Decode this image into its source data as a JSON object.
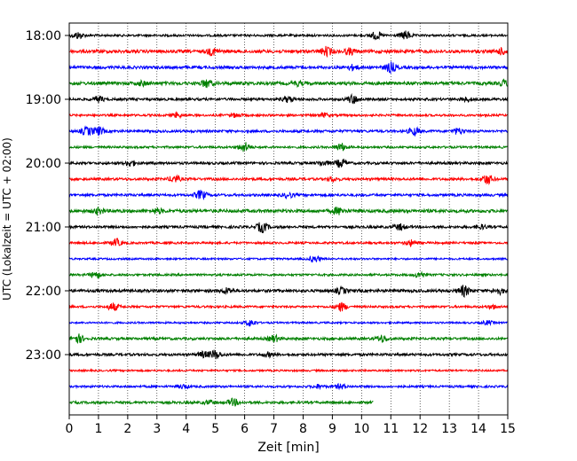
{
  "chart_data": {
    "type": "line",
    "title": "",
    "xlabel": "Zeit  [min]",
    "ylabel": "UTC (Lokalzeit = UTC + 02:00)",
    "xlim": [
      0,
      15
    ],
    "x_ticks": [
      "0",
      "1",
      "2",
      "3",
      "4",
      "5",
      "6",
      "7",
      "8",
      "9",
      "10",
      "11",
      "12",
      "13",
      "14",
      "15"
    ],
    "y_tick_labels": [
      "18:00",
      "19:00",
      "20:00",
      "21:00",
      "22:00",
      "23:00"
    ],
    "grid": "vertical dotted lines at each minute",
    "color_cycle": [
      "#000000",
      "#ff0000",
      "#0000ff",
      "#008000"
    ],
    "traces": [
      {
        "start": "18:00",
        "color": "#000000",
        "end_min": 15,
        "base": 1.2,
        "bursts": [
          [
            0.3,
            3.5
          ],
          [
            10.5,
            4
          ],
          [
            11.5,
            4.5
          ]
        ]
      },
      {
        "start": "18:15",
        "color": "#ff0000",
        "end_min": 15,
        "base": 1.8,
        "bursts": [
          [
            4.9,
            3.5
          ],
          [
            8.8,
            4.5
          ],
          [
            9.6,
            3
          ],
          [
            14.8,
            3
          ]
        ]
      },
      {
        "start": "18:30",
        "color": "#0000ff",
        "end_min": 15,
        "base": 1.6,
        "bursts": [
          [
            11.0,
            5
          ],
          [
            9.7,
            2.5
          ]
        ]
      },
      {
        "start": "18:45",
        "color": "#008000",
        "end_min": 15,
        "base": 1.8,
        "bursts": [
          [
            2.5,
            2
          ],
          [
            4.7,
            4
          ],
          [
            7.8,
            2
          ],
          [
            14.9,
            3
          ]
        ]
      },
      {
        "start": "19:00",
        "color": "#000000",
        "end_min": 15,
        "base": 1.4,
        "bursts": [
          [
            1.0,
            3
          ],
          [
            7.5,
            3
          ],
          [
            9.7,
            4.5
          ],
          [
            13.6,
            2
          ]
        ]
      },
      {
        "start": "19:15",
        "color": "#ff0000",
        "end_min": 15,
        "base": 1.2,
        "bursts": [
          [
            3.7,
            2.5
          ],
          [
            5.7,
            2
          ],
          [
            8.7,
            2
          ]
        ]
      },
      {
        "start": "19:30",
        "color": "#0000ff",
        "end_min": 15,
        "base": 1.4,
        "bursts": [
          [
            0.6,
            4
          ],
          [
            1.0,
            4.5
          ],
          [
            11.8,
            4
          ],
          [
            13.3,
            3
          ]
        ]
      },
      {
        "start": "19:45",
        "color": "#008000",
        "end_min": 15,
        "base": 1.2,
        "bursts": [
          [
            6.0,
            5
          ],
          [
            9.3,
            4
          ]
        ]
      },
      {
        "start": "20:00",
        "color": "#000000",
        "end_min": 15,
        "base": 1.4,
        "bursts": [
          [
            2.1,
            3
          ],
          [
            9.3,
            4.5
          ],
          [
            8.7,
            2.5
          ]
        ]
      },
      {
        "start": "20:15",
        "color": "#ff0000",
        "end_min": 15,
        "base": 1.4,
        "bursts": [
          [
            3.6,
            3.5
          ],
          [
            9.0,
            2
          ],
          [
            14.3,
            5
          ]
        ]
      },
      {
        "start": "20:30",
        "color": "#0000ff",
        "end_min": 15,
        "base": 1.4,
        "bursts": [
          [
            4.5,
            4.5
          ],
          [
            7.5,
            2.5
          ]
        ]
      },
      {
        "start": "20:45",
        "color": "#008000",
        "end_min": 15,
        "base": 1.8,
        "bursts": [
          [
            1.0,
            3
          ],
          [
            3.0,
            2.5
          ],
          [
            9.2,
            3.5
          ]
        ]
      },
      {
        "start": "21:00",
        "color": "#000000",
        "end_min": 15,
        "base": 1.4,
        "bursts": [
          [
            6.6,
            5.5
          ],
          [
            11.3,
            3
          ],
          [
            14.1,
            2
          ]
        ]
      },
      {
        "start": "21:15",
        "color": "#ff0000",
        "end_min": 15,
        "base": 1.2,
        "bursts": [
          [
            1.6,
            4
          ],
          [
            11.7,
            3
          ]
        ]
      },
      {
        "start": "21:30",
        "color": "#0000ff",
        "end_min": 15,
        "base": 1.0,
        "bursts": [
          [
            8.4,
            3.5
          ]
        ]
      },
      {
        "start": "21:45",
        "color": "#008000",
        "end_min": 15,
        "base": 1.2,
        "bursts": [
          [
            0.9,
            3.5
          ],
          [
            12.0,
            3
          ]
        ]
      },
      {
        "start": "22:00",
        "color": "#000000",
        "end_min": 15,
        "base": 1.6,
        "bursts": [
          [
            5.4,
            3
          ],
          [
            9.3,
            3
          ],
          [
            13.5,
            5.5
          ],
          [
            14.7,
            3
          ]
        ]
      },
      {
        "start": "22:15",
        "color": "#ff0000",
        "end_min": 15,
        "base": 1.2,
        "bursts": [
          [
            1.5,
            4
          ],
          [
            9.3,
            4.5
          ],
          [
            14.5,
            2
          ]
        ]
      },
      {
        "start": "22:30",
        "color": "#0000ff",
        "end_min": 15,
        "base": 1.0,
        "bursts": [
          [
            6.2,
            3.5
          ],
          [
            14.3,
            2
          ]
        ]
      },
      {
        "start": "22:45",
        "color": "#008000",
        "end_min": 15,
        "base": 1.4,
        "bursts": [
          [
            0.3,
            4.5
          ],
          [
            7.0,
            3.5
          ],
          [
            10.7,
            3.5
          ]
        ]
      },
      {
        "start": "23:00",
        "color": "#000000",
        "end_min": 15,
        "base": 1.4,
        "bursts": [
          [
            5.0,
            4.5
          ],
          [
            4.6,
            3
          ],
          [
            6.8,
            2
          ]
        ]
      },
      {
        "start": "23:15",
        "color": "#ff0000",
        "end_min": 15,
        "base": 1.0,
        "bursts": []
      },
      {
        "start": "23:30",
        "color": "#0000ff",
        "end_min": 15,
        "base": 1.2,
        "bursts": [
          [
            3.9,
            2
          ],
          [
            9.3,
            2.5
          ],
          [
            8.5,
            2
          ]
        ]
      },
      {
        "start": "23:45",
        "color": "#008000",
        "end_min": 10.4,
        "base": 1.4,
        "bursts": [
          [
            5.6,
            3.5
          ],
          [
            4.8,
            2
          ]
        ]
      }
    ]
  }
}
